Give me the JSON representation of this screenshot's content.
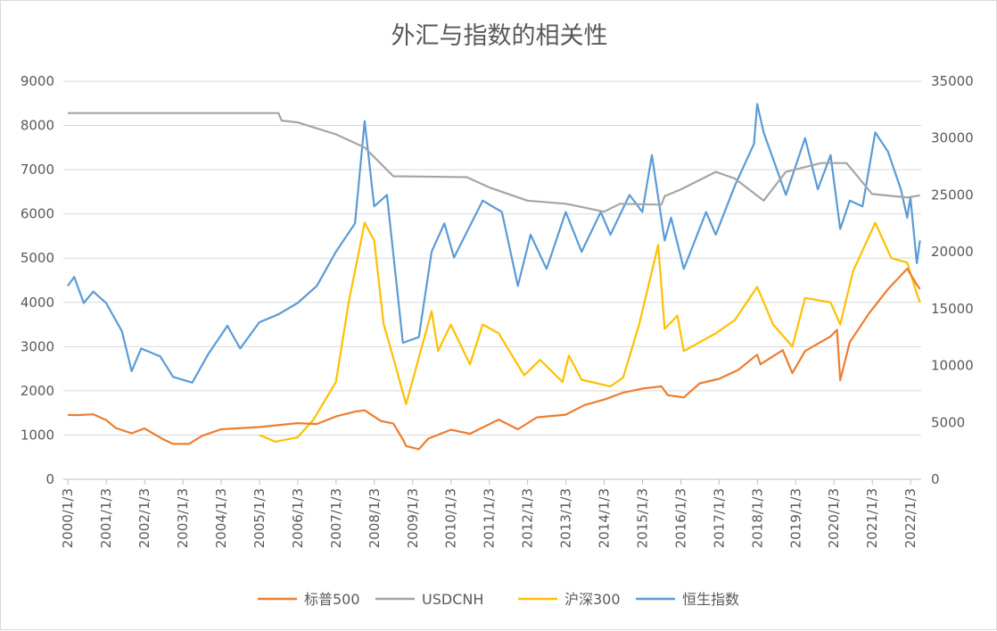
{
  "chart_data": {
    "type": "line",
    "title": "外汇与指数的相关性",
    "grid": true,
    "legend_position": "bottom",
    "x_ticks": [
      "2000/1/3",
      "2001/1/3",
      "2002/1/3",
      "2003/1/3",
      "2004/1/3",
      "2005/1/3",
      "2006/1/3",
      "2007/1/3",
      "2008/1/3",
      "2009/1/3",
      "2010/1/3",
      "2011/1/3",
      "2012/1/3",
      "2013/1/3",
      "2014/1/3",
      "2015/1/3",
      "2016/1/3",
      "2017/1/3",
      "2018/1/3",
      "2019/1/3",
      "2020/1/3",
      "2021/1/3",
      "2022/1/3"
    ],
    "y_left": {
      "range": [
        0,
        9000
      ],
      "ticks": [
        "0",
        "1000",
        "2000",
        "3000",
        "4000",
        "5000",
        "6000",
        "7000",
        "8000",
        "9000"
      ]
    },
    "y_right": {
      "range": [
        0,
        35000
      ],
      "ticks": [
        "0",
        "5000",
        "10000",
        "15000",
        "20000",
        "25000",
        "30000",
        "35000"
      ]
    },
    "series": [
      {
        "name": "标普500",
        "axis": "left",
        "color": "#ED7D31",
        "x": [
          "2000-01",
          "2000-04",
          "2000-09",
          "2001-01",
          "2001-04",
          "2001-09",
          "2002-01",
          "2002-07",
          "2002-10",
          "2003-03",
          "2003-07",
          "2004-01",
          "2005-01",
          "2006-01",
          "2006-07",
          "2007-01",
          "2007-07",
          "2007-10",
          "2008-03",
          "2008-07",
          "2008-10",
          "2008-11",
          "2009-03",
          "2009-06",
          "2010-01",
          "2010-07",
          "2011-04",
          "2011-10",
          "2012-04",
          "2013-01",
          "2013-07",
          "2014-01",
          "2014-07",
          "2015-01",
          "2015-07",
          "2015-09",
          "2016-02",
          "2016-07",
          "2017-01",
          "2017-07",
          "2018-01",
          "2018-02",
          "2018-09",
          "2018-12",
          "2019-04",
          "2019-12",
          "2020-02",
          "2020-03",
          "2020-06",
          "2020-12",
          "2021-06",
          "2021-12",
          "2022-03",
          "2022-04"
        ],
        "y": [
          1455,
          1450,
          1470,
          1340,
          1160,
          1040,
          1150,
          900,
          800,
          800,
          980,
          1130,
          1180,
          1270,
          1250,
          1420,
          1530,
          1560,
          1320,
          1260,
          900,
          750,
          680,
          920,
          1120,
          1030,
          1350,
          1130,
          1400,
          1460,
          1680,
          1800,
          1960,
          2050,
          2100,
          1900,
          1850,
          2170,
          2270,
          2470,
          2820,
          2600,
          2920,
          2400,
          2900,
          3230,
          3380,
          2240,
          3100,
          3750,
          4300,
          4760,
          4400,
          4300
        ]
      },
      {
        "name": "USDCNH",
        "axis": "left",
        "color": "#A5A5A5",
        "x": [
          "2000-01",
          "2005-07",
          "2005-08",
          "2006-01",
          "2007-01",
          "2007-10",
          "2008-07",
          "2010-06",
          "2011-01",
          "2012-01",
          "2013-01",
          "2014-01",
          "2014-06",
          "2015-07",
          "2015-08",
          "2016-01",
          "2016-12",
          "2017-06",
          "2018-03",
          "2018-10",
          "2019-09",
          "2020-05",
          "2021-01",
          "2021-12",
          "2022-04"
        ],
        "y": [
          8280,
          8280,
          8110,
          8070,
          7800,
          7500,
          6850,
          6830,
          6600,
          6300,
          6230,
          6050,
          6230,
          6210,
          6400,
          6550,
          6950,
          6800,
          6300,
          6950,
          7150,
          7150,
          6450,
          6370,
          6420
        ]
      },
      {
        "name": "沪深300",
        "axis": "left",
        "color": "#FFC000",
        "x": [
          "2005-01",
          "2005-06",
          "2006-01",
          "2006-06",
          "2007-01",
          "2007-05",
          "2007-10",
          "2008-01",
          "2008-04",
          "2008-06",
          "2008-11",
          "2009-07",
          "2009-09",
          "2010-01",
          "2010-07",
          "2010-11",
          "2011-04",
          "2011-12",
          "2012-05",
          "2012-12",
          "2013-02",
          "2013-06",
          "2014-03",
          "2014-07",
          "2014-12",
          "2015-06",
          "2015-08",
          "2015-12",
          "2016-02",
          "2016-12",
          "2017-06",
          "2018-01",
          "2018-06",
          "2018-12",
          "2019-04",
          "2019-12",
          "2020-03",
          "2020-07",
          "2021-02",
          "2021-07",
          "2021-12",
          "2022-03",
          "2022-04"
        ],
        "y": [
          1000,
          850,
          950,
          1350,
          2200,
          4000,
          5800,
          5400,
          3500,
          3000,
          1700,
          3800,
          2900,
          3500,
          2600,
          3500,
          3300,
          2350,
          2700,
          2200,
          2800,
          2250,
          2100,
          2300,
          3500,
          5300,
          3400,
          3700,
          2900,
          3300,
          3600,
          4350,
          3500,
          3000,
          4100,
          4000,
          3500,
          4700,
          5800,
          5000,
          4900,
          4200,
          4000
        ]
      },
      {
        "name": "恒生指数",
        "axis": "right",
        "color": "#5B9BD5",
        "x": [
          "2000-01",
          "2000-03",
          "2000-06",
          "2000-09",
          "2001-01",
          "2001-06",
          "2001-09",
          "2001-12",
          "2002-06",
          "2002-10",
          "2003-04",
          "2003-09",
          "2004-03",
          "2004-07",
          "2005-01",
          "2005-07",
          "2006-01",
          "2006-07",
          "2007-01",
          "2007-07",
          "2007-10",
          "2008-01",
          "2008-05",
          "2008-10",
          "2009-03",
          "2009-07",
          "2009-11",
          "2010-02",
          "2010-11",
          "2011-05",
          "2011-10",
          "2012-02",
          "2012-07",
          "2013-01",
          "2013-06",
          "2013-12",
          "2014-03",
          "2014-09",
          "2015-01",
          "2015-04",
          "2015-08",
          "2015-10",
          "2016-02",
          "2016-09",
          "2016-12",
          "2017-06",
          "2017-12",
          "2018-01",
          "2018-03",
          "2018-10",
          "2019-04",
          "2019-08",
          "2019-12",
          "2020-03",
          "2020-06",
          "2020-10",
          "2021-02",
          "2021-06",
          "2021-10",
          "2021-12",
          "2022-01",
          "2022-03",
          "2022-04"
        ],
        "y": [
          17000,
          17800,
          15500,
          16500,
          15500,
          13000,
          9500,
          11500,
          10800,
          9000,
          8500,
          11000,
          13500,
          11500,
          13800,
          14500,
          15500,
          17000,
          20000,
          22500,
          31500,
          24000,
          25000,
          12000,
          12500,
          20000,
          22500,
          19500,
          24500,
          23500,
          17000,
          21500,
          18500,
          23500,
          20000,
          23500,
          21500,
          25000,
          23500,
          28500,
          21000,
          23000,
          18500,
          23500,
          21500,
          25800,
          29500,
          33000,
          30500,
          25000,
          30000,
          25500,
          28500,
          22000,
          24500,
          24000,
          30500,
          28800,
          25500,
          23000,
          24800,
          19000,
          21000
        ]
      }
    ]
  }
}
